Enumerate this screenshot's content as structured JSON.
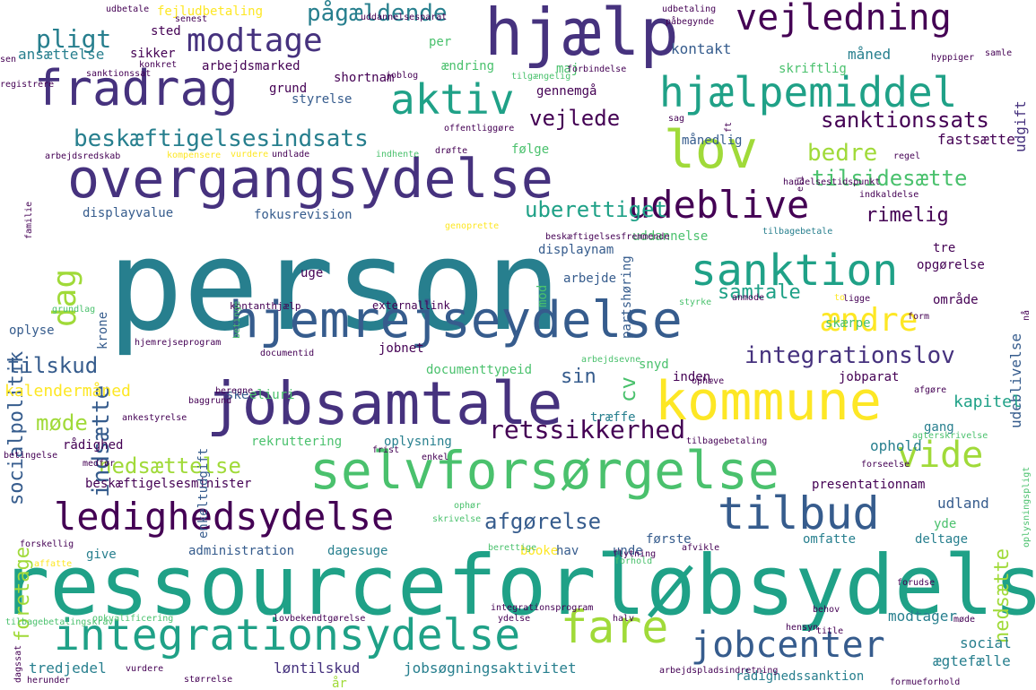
{
  "palette": [
    "#440154",
    "#46327e",
    "#365c8d",
    "#277f8e",
    "#1fa187",
    "#4ac16d",
    "#a0da39",
    "#fde725"
  ],
  "words": [
    {
      "text": "person",
      "weight": 1.0,
      "color": "#277f8e"
    },
    {
      "text": "ressourceforløbsydelse",
      "weight": 0.72,
      "color": "#1fa187"
    },
    {
      "text": "overgangsydelse",
      "weight": 0.62,
      "color": "#46327e"
    },
    {
      "text": "hjælp",
      "weight": 0.6,
      "color": "#46327e"
    },
    {
      "text": "jobsamtale",
      "weight": 0.58,
      "color": "#46327e"
    },
    {
      "text": "kommune",
      "weight": 0.56,
      "color": "#fde725"
    },
    {
      "text": "selvforsørgelse",
      "weight": 0.52,
      "color": "#4ac16d"
    },
    {
      "text": "hjemrejseydelse",
      "weight": 0.5,
      "color": "#365c8d"
    },
    {
      "text": "fradrag",
      "weight": 0.46,
      "color": "#46327e"
    },
    {
      "text": "lov",
      "weight": 0.44,
      "color": "#a0da39"
    },
    {
      "text": "fare",
      "weight": 0.44,
      "color": "#a0da39"
    },
    {
      "text": "integrationsydelse",
      "weight": 0.42,
      "color": "#1fa187"
    },
    {
      "text": "tilbud",
      "weight": 0.42,
      "color": "#365c8d"
    },
    {
      "text": "ledighedsydelse",
      "weight": 0.38,
      "color": "#440154"
    },
    {
      "text": "sanktion",
      "weight": 0.38,
      "color": "#1fa187"
    },
    {
      "text": "hjælpemiddel",
      "weight": 0.36,
      "color": "#1fa187"
    },
    {
      "text": "aktiv",
      "weight": 0.36,
      "color": "#1fa187"
    },
    {
      "text": "vejledning",
      "weight": 0.34,
      "color": "#440154"
    },
    {
      "text": "udeblive",
      "weight": 0.34,
      "color": "#440154"
    },
    {
      "text": "jobcenter",
      "weight": 0.34,
      "color": "#365c8d"
    },
    {
      "text": "modtage",
      "weight": 0.32,
      "color": "#46327e"
    },
    {
      "text": "vide",
      "weight": 0.32,
      "color": "#a0da39"
    },
    {
      "text": "ændre",
      "weight": 0.3,
      "color": "#fde725"
    },
    {
      "text": "dag",
      "weight": 0.28,
      "color": "#a0da39"
    },
    {
      "text": "retssikkerhed",
      "weight": 0.26,
      "color": "#440154"
    },
    {
      "text": "beskæftigelsesindsats",
      "weight": 0.24,
      "color": "#277f8e"
    },
    {
      "text": "sanktionssats",
      "weight": 0.22,
      "color": "#440154"
    },
    {
      "text": "tilsidesætte",
      "weight": 0.22,
      "color": "#4ac16d"
    },
    {
      "text": "integrationslov",
      "weight": 0.22,
      "color": "#46327e"
    },
    {
      "text": "uberettiget",
      "weight": 0.22,
      "color": "#1fa187"
    },
    {
      "text": "nedsættelse",
      "weight": 0.22,
      "color": "#a0da39"
    },
    {
      "text": "afgørelse",
      "weight": 0.22,
      "color": "#365c8d"
    },
    {
      "text": "pligt",
      "weight": 0.22,
      "color": "#277f8e"
    },
    {
      "text": "pågældende",
      "weight": 0.2,
      "color": "#277f8e"
    },
    {
      "text": "vejlede",
      "weight": 0.2,
      "color": "#440154"
    },
    {
      "text": "bedre",
      "weight": 0.2,
      "color": "#a0da39"
    },
    {
      "text": "rimelig",
      "weight": 0.2,
      "color": "#440154"
    },
    {
      "text": "samtale",
      "weight": 0.2,
      "color": "#1fa187"
    },
    {
      "text": "socialpolitik",
      "weight": 0.2,
      "color": "#365c8d"
    },
    {
      "text": "indsætte",
      "weight": 0.2,
      "color": "#365c8d"
    },
    {
      "text": "tilskud",
      "weight": 0.2,
      "color": "#365c8d"
    },
    {
      "text": "møde",
      "weight": 0.2,
      "color": "#a0da39"
    },
    {
      "text": "foretage",
      "weight": 0.2,
      "color": "#a0da39"
    },
    {
      "text": "nedsætte",
      "weight": 0.2,
      "color": "#a0da39"
    },
    {
      "text": "sin",
      "weight": 0.2,
      "color": "#365c8d"
    },
    {
      "text": "cv",
      "weight": 0.2,
      "color": "#4ac16d"
    },
    {
      "text": "udgift",
      "weight": 0.16,
      "color": "#46327e"
    },
    {
      "text": "kalendermåned",
      "weight": 0.16,
      "color": "#fde725"
    },
    {
      "text": "udeblivelse",
      "weight": 0.16,
      "color": "#365c8d"
    },
    {
      "text": "kapitel",
      "weight": 0.16,
      "color": "#1fa187"
    },
    {
      "text": "fastsætte",
      "weight": 0.16,
      "color": "#440154"
    },
    {
      "text": "jobsøgningsaktivitet",
      "weight": 0.16,
      "color": "#277f8e"
    },
    {
      "text": "løntilskud",
      "weight": 0.16,
      "color": "#46327e"
    },
    {
      "text": "tredjedel",
      "weight": 0.16,
      "color": "#277f8e"
    },
    {
      "text": "udland",
      "weight": 0.16,
      "color": "#365c8d"
    },
    {
      "text": "ophold",
      "weight": 0.16,
      "color": "#277f8e"
    },
    {
      "text": "social",
      "weight": 0.16,
      "color": "#277f8e"
    },
    {
      "text": "ægtefælle",
      "weight": 0.16,
      "color": "#277f8e"
    },
    {
      "text": "modtager",
      "weight": 0.16,
      "color": "#277f8e"
    },
    {
      "text": "ansættelse",
      "weight": 0.14,
      "color": "#277f8e"
    },
    {
      "text": "kontakt",
      "weight": 0.14,
      "color": "#365c8d"
    },
    {
      "text": "måned",
      "weight": 0.14,
      "color": "#277f8e"
    },
    {
      "text": "gennemgå",
      "weight": 0.14,
      "color": "#440154"
    },
    {
      "text": "grund",
      "weight": 0.14,
      "color": "#440154"
    },
    {
      "text": "styrelse",
      "weight": 0.14,
      "color": "#365c8d"
    },
    {
      "text": "displayvalue",
      "weight": 0.14,
      "color": "#365c8d"
    },
    {
      "text": "fokusrevision",
      "weight": 0.14,
      "color": "#365c8d"
    },
    {
      "text": "uddannelse",
      "weight": 0.14,
      "color": "#4ac16d"
    },
    {
      "text": "displaynam",
      "weight": 0.14,
      "color": "#365c8d"
    },
    {
      "text": "arbejde",
      "weight": 0.14,
      "color": "#365c8d"
    },
    {
      "text": "område",
      "weight": 0.14,
      "color": "#440154"
    },
    {
      "text": "oplyse",
      "weight": 0.14,
      "color": "#365c8d"
    },
    {
      "text": "skærpe",
      "weight": 0.14,
      "color": "#4ac16d"
    },
    {
      "text": "jobnet",
      "weight": 0.14,
      "color": "#440154"
    },
    {
      "text": "inden",
      "weight": 0.14,
      "color": "#440154"
    },
    {
      "text": "jobparat",
      "weight": 0.14,
      "color": "#440154"
    },
    {
      "text": "gang",
      "weight": 0.14,
      "color": "#277f8e"
    },
    {
      "text": "rekruttering",
      "weight": 0.14,
      "color": "#4ac16d"
    },
    {
      "text": "oplysning",
      "weight": 0.14,
      "color": "#277f8e"
    },
    {
      "text": "beskæftigelsesminister",
      "weight": 0.14,
      "color": "#440154"
    },
    {
      "text": "presentationnam",
      "weight": 0.14,
      "color": "#440154"
    },
    {
      "text": "administration",
      "weight": 0.14,
      "color": "#365c8d"
    },
    {
      "text": "dagesuge",
      "weight": 0.14,
      "color": "#277f8e"
    },
    {
      "text": "første",
      "weight": 0.14,
      "color": "#365c8d"
    },
    {
      "text": "omfatte",
      "weight": 0.14,
      "color": "#277f8e"
    },
    {
      "text": "deltage",
      "weight": 0.14,
      "color": "#277f8e"
    },
    {
      "text": "krone",
      "weight": 0.14,
      "color": "#365c8d"
    },
    {
      "text": "uge",
      "weight": 0.14,
      "color": "#440154"
    },
    {
      "text": "rådighed",
      "weight": 0.12,
      "color": "#440154"
    },
    {
      "text": "rådighedssanktion",
      "weight": 0.12,
      "color": "#277f8e"
    },
    {
      "text": "give",
      "weight": 0.12,
      "color": "#277f8e"
    },
    {
      "text": "følge",
      "weight": 0.12,
      "color": "#4ac16d"
    },
    {
      "text": "opgørelse",
      "weight": 0.12,
      "color": "#440154"
    },
    {
      "text": "tre",
      "weight": 0.12,
      "color": "#440154"
    },
    {
      "text": "fejludbetaling",
      "weight": 0.12,
      "color": "#fde725"
    },
    {
      "text": "sted",
      "weight": 0.12,
      "color": "#440154"
    },
    {
      "text": "sikker",
      "weight": 0.12,
      "color": "#440154"
    },
    {
      "text": "arbejdsmarked",
      "weight": 0.12,
      "color": "#440154"
    },
    {
      "text": "shortnam",
      "weight": 0.12,
      "color": "#440154"
    },
    {
      "text": "per",
      "weight": 0.12,
      "color": "#4ac16d"
    },
    {
      "text": "ændring",
      "weight": 0.12,
      "color": "#4ac16d"
    },
    {
      "text": "maj",
      "weight": 0.12,
      "color": "#4ac16d"
    },
    {
      "text": "skriftlig",
      "weight": 0.12,
      "color": "#4ac16d"
    },
    {
      "text": "månedlig",
      "weight": 0.12,
      "color": "#365c8d"
    },
    {
      "text": "mod",
      "weight": 0.12,
      "color": "#4ac16d"
    },
    {
      "text": "ske",
      "weight": 0.12,
      "color": "#365c8d"
    },
    {
      "text": "eliuri",
      "weight": 0.12,
      "color": "#4ac16d"
    },
    {
      "text": "snyd",
      "weight": 0.12,
      "color": "#4ac16d"
    },
    {
      "text": "documenttypeid",
      "weight": 0.12,
      "color": "#4ac16d"
    },
    {
      "text": "enkeltudgift",
      "weight": 0.12,
      "color": "#365c8d"
    },
    {
      "text": "træffe",
      "weight": 0.12,
      "color": "#277f8e"
    },
    {
      "text": "booke",
      "weight": 0.12,
      "color": "#fde725"
    },
    {
      "text": "hav",
      "weight": 0.12,
      "color": "#365c8d"
    },
    {
      "text": "unde",
      "weight": 0.12,
      "color": "#365c8d"
    },
    {
      "text": "yde",
      "weight": 0.12,
      "color": "#4ac16d"
    },
    {
      "text": "år",
      "weight": 0.12,
      "color": "#a0da39"
    },
    {
      "text": "partshøring",
      "weight": 0.12,
      "color": "#365c8d"
    },
    {
      "text": "kontanthjælp",
      "weight": 0.08,
      "color": "#440154"
    },
    {
      "text": "externallink",
      "weight": 0.1,
      "color": "#440154"
    },
    {
      "text": "opkvalificering",
      "weight": 0.08,
      "color": "#4ac16d"
    },
    {
      "text": "lovbekendtgørelse",
      "weight": 0.08,
      "color": "#440154"
    },
    {
      "text": "ydelse",
      "weight": 0.08,
      "color": "#440154"
    },
    {
      "text": "hensyn",
      "weight": 0.08,
      "color": "#440154"
    },
    {
      "text": "forudse",
      "weight": 0.08,
      "color": "#440154"
    },
    {
      "text": "behov",
      "weight": 0.08,
      "color": "#440154"
    },
    {
      "text": "udbetaling",
      "weight": 0.06,
      "color": "#440154"
    },
    {
      "text": "udbetale",
      "weight": 0.06,
      "color": "#440154"
    },
    {
      "text": "påbegynde",
      "weight": 0.06,
      "color": "#440154"
    },
    {
      "text": "uddannelsesparat",
      "weight": 0.06,
      "color": "#440154"
    },
    {
      "text": "senest",
      "weight": 0.06,
      "color": "#440154"
    },
    {
      "text": "joblog",
      "weight": 0.06,
      "color": "#440154"
    },
    {
      "text": "konkret",
      "weight": 0.06,
      "color": "#440154"
    },
    {
      "text": "sanktionssat",
      "weight": 0.06,
      "color": "#440154"
    },
    {
      "text": "forbindelse",
      "weight": 0.06,
      "color": "#440154"
    },
    {
      "text": "tilgængelig",
      "weight": 0.06,
      "color": "#4ac16d"
    },
    {
      "text": "hyppiger",
      "weight": 0.06,
      "color": "#440154"
    },
    {
      "text": "sag",
      "weight": 0.06,
      "color": "#440154"
    },
    {
      "text": "arbejdsredskab",
      "weight": 0.06,
      "color": "#440154"
    },
    {
      "text": "kompensere",
      "weight": 0.06,
      "color": "#fde725"
    },
    {
      "text": "undlade",
      "weight": 0.06,
      "color": "#440154"
    },
    {
      "text": "vurdere",
      "weight": 0.06,
      "color": "#fde725"
    },
    {
      "text": "indhente",
      "weight": 0.06,
      "color": "#4ac16d"
    },
    {
      "text": "drøfte",
      "weight": 0.06,
      "color": "#440154"
    },
    {
      "text": "offentliggøre",
      "weight": 0.06,
      "color": "#440154"
    },
    {
      "text": "regel",
      "weight": 0.06,
      "color": "#440154"
    },
    {
      "text": "handelsestidspunkt",
      "weight": 0.06,
      "color": "#440154"
    },
    {
      "text": "indkaldelse",
      "weight": 0.06,
      "color": "#440154"
    },
    {
      "text": "genoprette",
      "weight": 0.06,
      "color": "#fde725"
    },
    {
      "text": "beskæftigelsesfremmende",
      "weight": 0.06,
      "color": "#440154"
    },
    {
      "text": "tilbagebetale",
      "weight": 0.06,
      "color": "#277f8e"
    },
    {
      "text": "familie",
      "weight": 0.06,
      "color": "#440154"
    },
    {
      "text": "grundlag",
      "weight": 0.06,
      "color": "#4ac16d"
    },
    {
      "text": "betinge",
      "weight": 0.06,
      "color": "#4ac16d"
    },
    {
      "text": "styrke",
      "weight": 0.06,
      "color": "#4ac16d"
    },
    {
      "text": "ligge",
      "weight": 0.06,
      "color": "#440154"
    },
    {
      "text": "form",
      "weight": 0.06,
      "color": "#440154"
    },
    {
      "text": "hjemrejseprogram",
      "weight": 0.06,
      "color": "#440154"
    },
    {
      "text": "documentid",
      "weight": 0.06,
      "color": "#440154"
    },
    {
      "text": "arbejdsevne",
      "weight": 0.06,
      "color": "#4ac16d"
    },
    {
      "text": "ophæve",
      "weight": 0.06,
      "color": "#440154"
    },
    {
      "text": "afgøre",
      "weight": 0.06,
      "color": "#440154"
    },
    {
      "text": "beregne",
      "weight": 0.06,
      "color": "#440154"
    },
    {
      "text": "baggrund",
      "weight": 0.06,
      "color": "#440154"
    },
    {
      "text": "ankestyrelse",
      "weight": 0.06,
      "color": "#440154"
    },
    {
      "text": "tilbagebetaling",
      "weight": 0.06,
      "color": "#440154"
    },
    {
      "text": "agterskrivelse",
      "weight": 0.06,
      "color": "#4ac16d"
    },
    {
      "text": "frist",
      "weight": 0.06,
      "color": "#440154"
    },
    {
      "text": "enkel",
      "weight": 0.06,
      "color": "#440154"
    },
    {
      "text": "medfør",
      "weight": 0.06,
      "color": "#440154"
    },
    {
      "text": "forseelse",
      "weight": 0.06,
      "color": "#440154"
    },
    {
      "text": "betingelse",
      "weight": 0.06,
      "color": "#440154"
    },
    {
      "text": "ophør",
      "weight": 0.06,
      "color": "#4ac16d"
    },
    {
      "text": "skrivelse",
      "weight": 0.06,
      "color": "#4ac16d"
    },
    {
      "text": "forskellig",
      "weight": 0.06,
      "color": "#440154"
    },
    {
      "text": "berettige",
      "weight": 0.06,
      "color": "#4ac16d"
    },
    {
      "text": "afvikle",
      "weight": 0.06,
      "color": "#440154"
    },
    {
      "text": "affatte",
      "weight": 0.06,
      "color": "#fde725"
    },
    {
      "text": "forhold",
      "weight": 0.06,
      "color": "#4ac16d"
    },
    {
      "text": "flytning",
      "weight": 0.06,
      "color": "#440154"
    },
    {
      "text": "tilbagebetalingskrav",
      "weight": 0.06,
      "color": "#4ac16d"
    },
    {
      "text": "halv",
      "weight": 0.06,
      "color": "#440154"
    },
    {
      "text": "møde",
      "weight": 0.06,
      "color": "#440154"
    },
    {
      "text": "title",
      "weight": 0.06,
      "color": "#440154"
    },
    {
      "text": "dagssat",
      "weight": 0.06,
      "color": "#440154"
    },
    {
      "text": "vurdere",
      "weight": 0.06,
      "color": "#440154"
    },
    {
      "text": "herunder",
      "weight": 0.06,
      "color": "#440154"
    },
    {
      "text": "størrelse",
      "weight": 0.06,
      "color": "#440154"
    },
    {
      "text": "arbejdspladsindretning",
      "weight": 0.06,
      "color": "#440154"
    },
    {
      "text": "formueforhold",
      "weight": 0.06,
      "color": "#440154"
    },
    {
      "text": "integrationsprogram",
      "weight": 0.06,
      "color": "#440154"
    },
    {
      "text": "oplysningspligt",
      "weight": 0.06,
      "color": "#4ac16d"
    },
    {
      "text": "nå",
      "weight": 0.06,
      "color": "#440154"
    },
    {
      "text": "ft",
      "weight": 0.06,
      "color": "#440154"
    },
    {
      "text": "eli",
      "weight": 0.06,
      "color": "#440154"
    },
    {
      "text": "to",
      "weight": 0.06,
      "color": "#fde725"
    },
    {
      "text": "samle",
      "weight": 0.06,
      "color": "#440154"
    },
    {
      "text": "anmode",
      "weight": 0.06,
      "color": "#440154"
    },
    {
      "text": "sen",
      "weight": 0.06,
      "color": "#440154"
    },
    {
      "text": "registrere",
      "weight": 0.06,
      "color": "#440154"
    }
  ]
}
